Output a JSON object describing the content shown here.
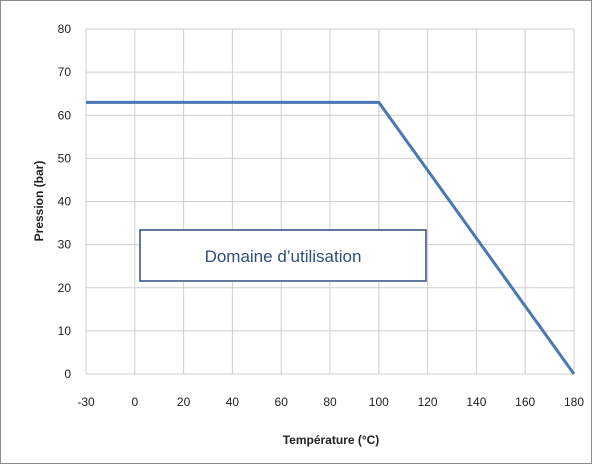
{
  "chart_data": {
    "type": "line",
    "title": "",
    "xlabel": "Température (°C)",
    "ylabel": "Pression (bar)",
    "xlim": [
      -30,
      180
    ],
    "ylim": [
      0,
      80
    ],
    "x_ticks": [
      -30,
      0,
      20,
      40,
      60,
      80,
      100,
      120,
      140,
      160,
      180
    ],
    "y_ticks": [
      0,
      10,
      20,
      30,
      40,
      50,
      60,
      70,
      80
    ],
    "grid": true,
    "legend": "none",
    "series": [
      {
        "points": [
          [
            -30,
            63
          ],
          [
            100,
            63
          ],
          [
            180,
            0
          ]
        ],
        "color": "#4a78b5"
      }
    ],
    "annotation": {
      "text": "Domaine d’utilisation",
      "border_color": "#2e4f7a"
    }
  }
}
